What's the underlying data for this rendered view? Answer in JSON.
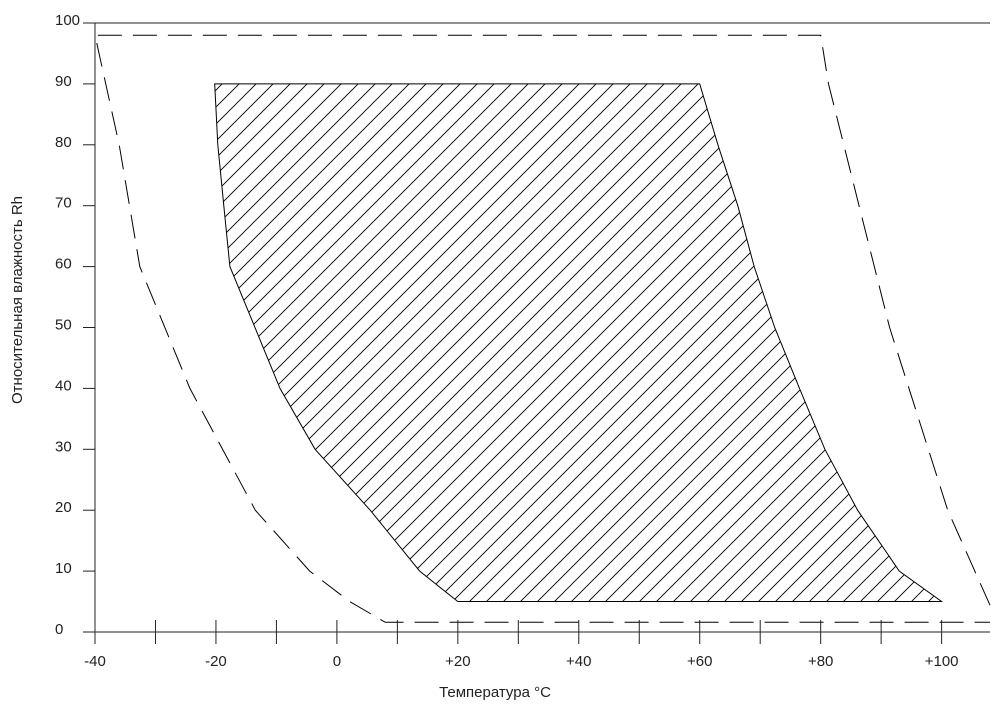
{
  "chart_data": {
    "type": "region",
    "xlabel": "Температура °C",
    "ylabel": "Относительная влажность Rh",
    "xlim": [
      -40,
      108
    ],
    "ylim": [
      0,
      100
    ],
    "xticks": [
      -40,
      -20,
      0,
      {
        "value": 20,
        "label": "+20"
      },
      {
        "value": 40,
        "label": "+40"
      },
      {
        "value": 60,
        "label": "+60"
      },
      {
        "value": 80,
        "label": "+80"
      },
      {
        "value": 100,
        "label": "+100"
      }
    ],
    "xminorticks": [
      -30,
      -10,
      10,
      30,
      50,
      70,
      90
    ],
    "yticks": [
      0,
      10,
      20,
      30,
      40,
      50,
      60,
      70,
      80,
      90,
      100
    ],
    "series": [
      {
        "style": "hatch",
        "color": "#000000",
        "x": [
          -20.2,
          60,
          63,
          66.3,
          69,
          72.4,
          76.5,
          80.7,
          86.1,
          93,
          100,
          20,
          13.7,
          5.5,
          -3.6,
          -9.4,
          -17.7,
          -18.7,
          -19.7
        ],
        "values": [
          90,
          90,
          80,
          70,
          60,
          50,
          40,
          30,
          20,
          10,
          5,
          5,
          10,
          20,
          30,
          40,
          60,
          70,
          80
        ]
      },
      {
        "style": "dashed",
        "color": "#000000",
        "x": [
          108,
          101,
          91.4,
          81.3,
          80,
          -40,
          -36,
          -32.6,
          -24.3,
          -13.5,
          -4.5,
          2.1,
          8,
          108
        ],
        "values": [
          4.4,
          20,
          50,
          90,
          98,
          98,
          80,
          60,
          40,
          20,
          10,
          5,
          1.6,
          1.6
        ]
      }
    ]
  }
}
